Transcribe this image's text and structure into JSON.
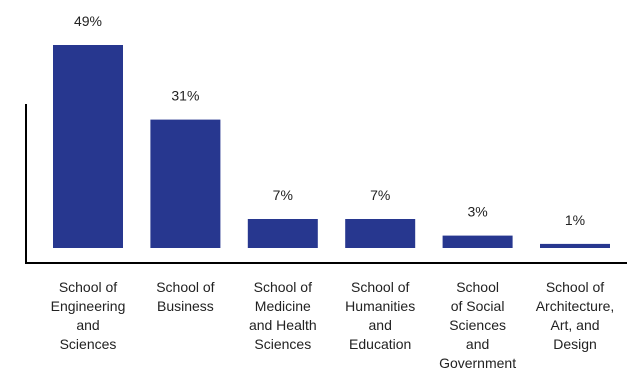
{
  "chart_data": {
    "type": "bar",
    "title": "",
    "xlabel": "",
    "ylabel": "",
    "ylim": [
      0,
      49
    ],
    "grid": false,
    "legend": "none",
    "bar_color": "#27378f",
    "axis_color": "#000000",
    "categories": [
      [
        "School of",
        "Engineering",
        "and",
        "Sciences"
      ],
      [
        "School of",
        "Business"
      ],
      [
        "School of",
        "Medicine",
        "and Health",
        "Sciences"
      ],
      [
        "School of",
        "Humanities",
        "and",
        "Education"
      ],
      [
        "School",
        "of Social",
        "Sciences",
        "and",
        "Government"
      ],
      [
        "School of",
        "Architecture,",
        "Art, and",
        "Design"
      ]
    ],
    "values": [
      49,
      31,
      7,
      7,
      3,
      1
    ],
    "value_labels": [
      "49%",
      "31%",
      "7%",
      "7%",
      "3%",
      "1%"
    ]
  }
}
